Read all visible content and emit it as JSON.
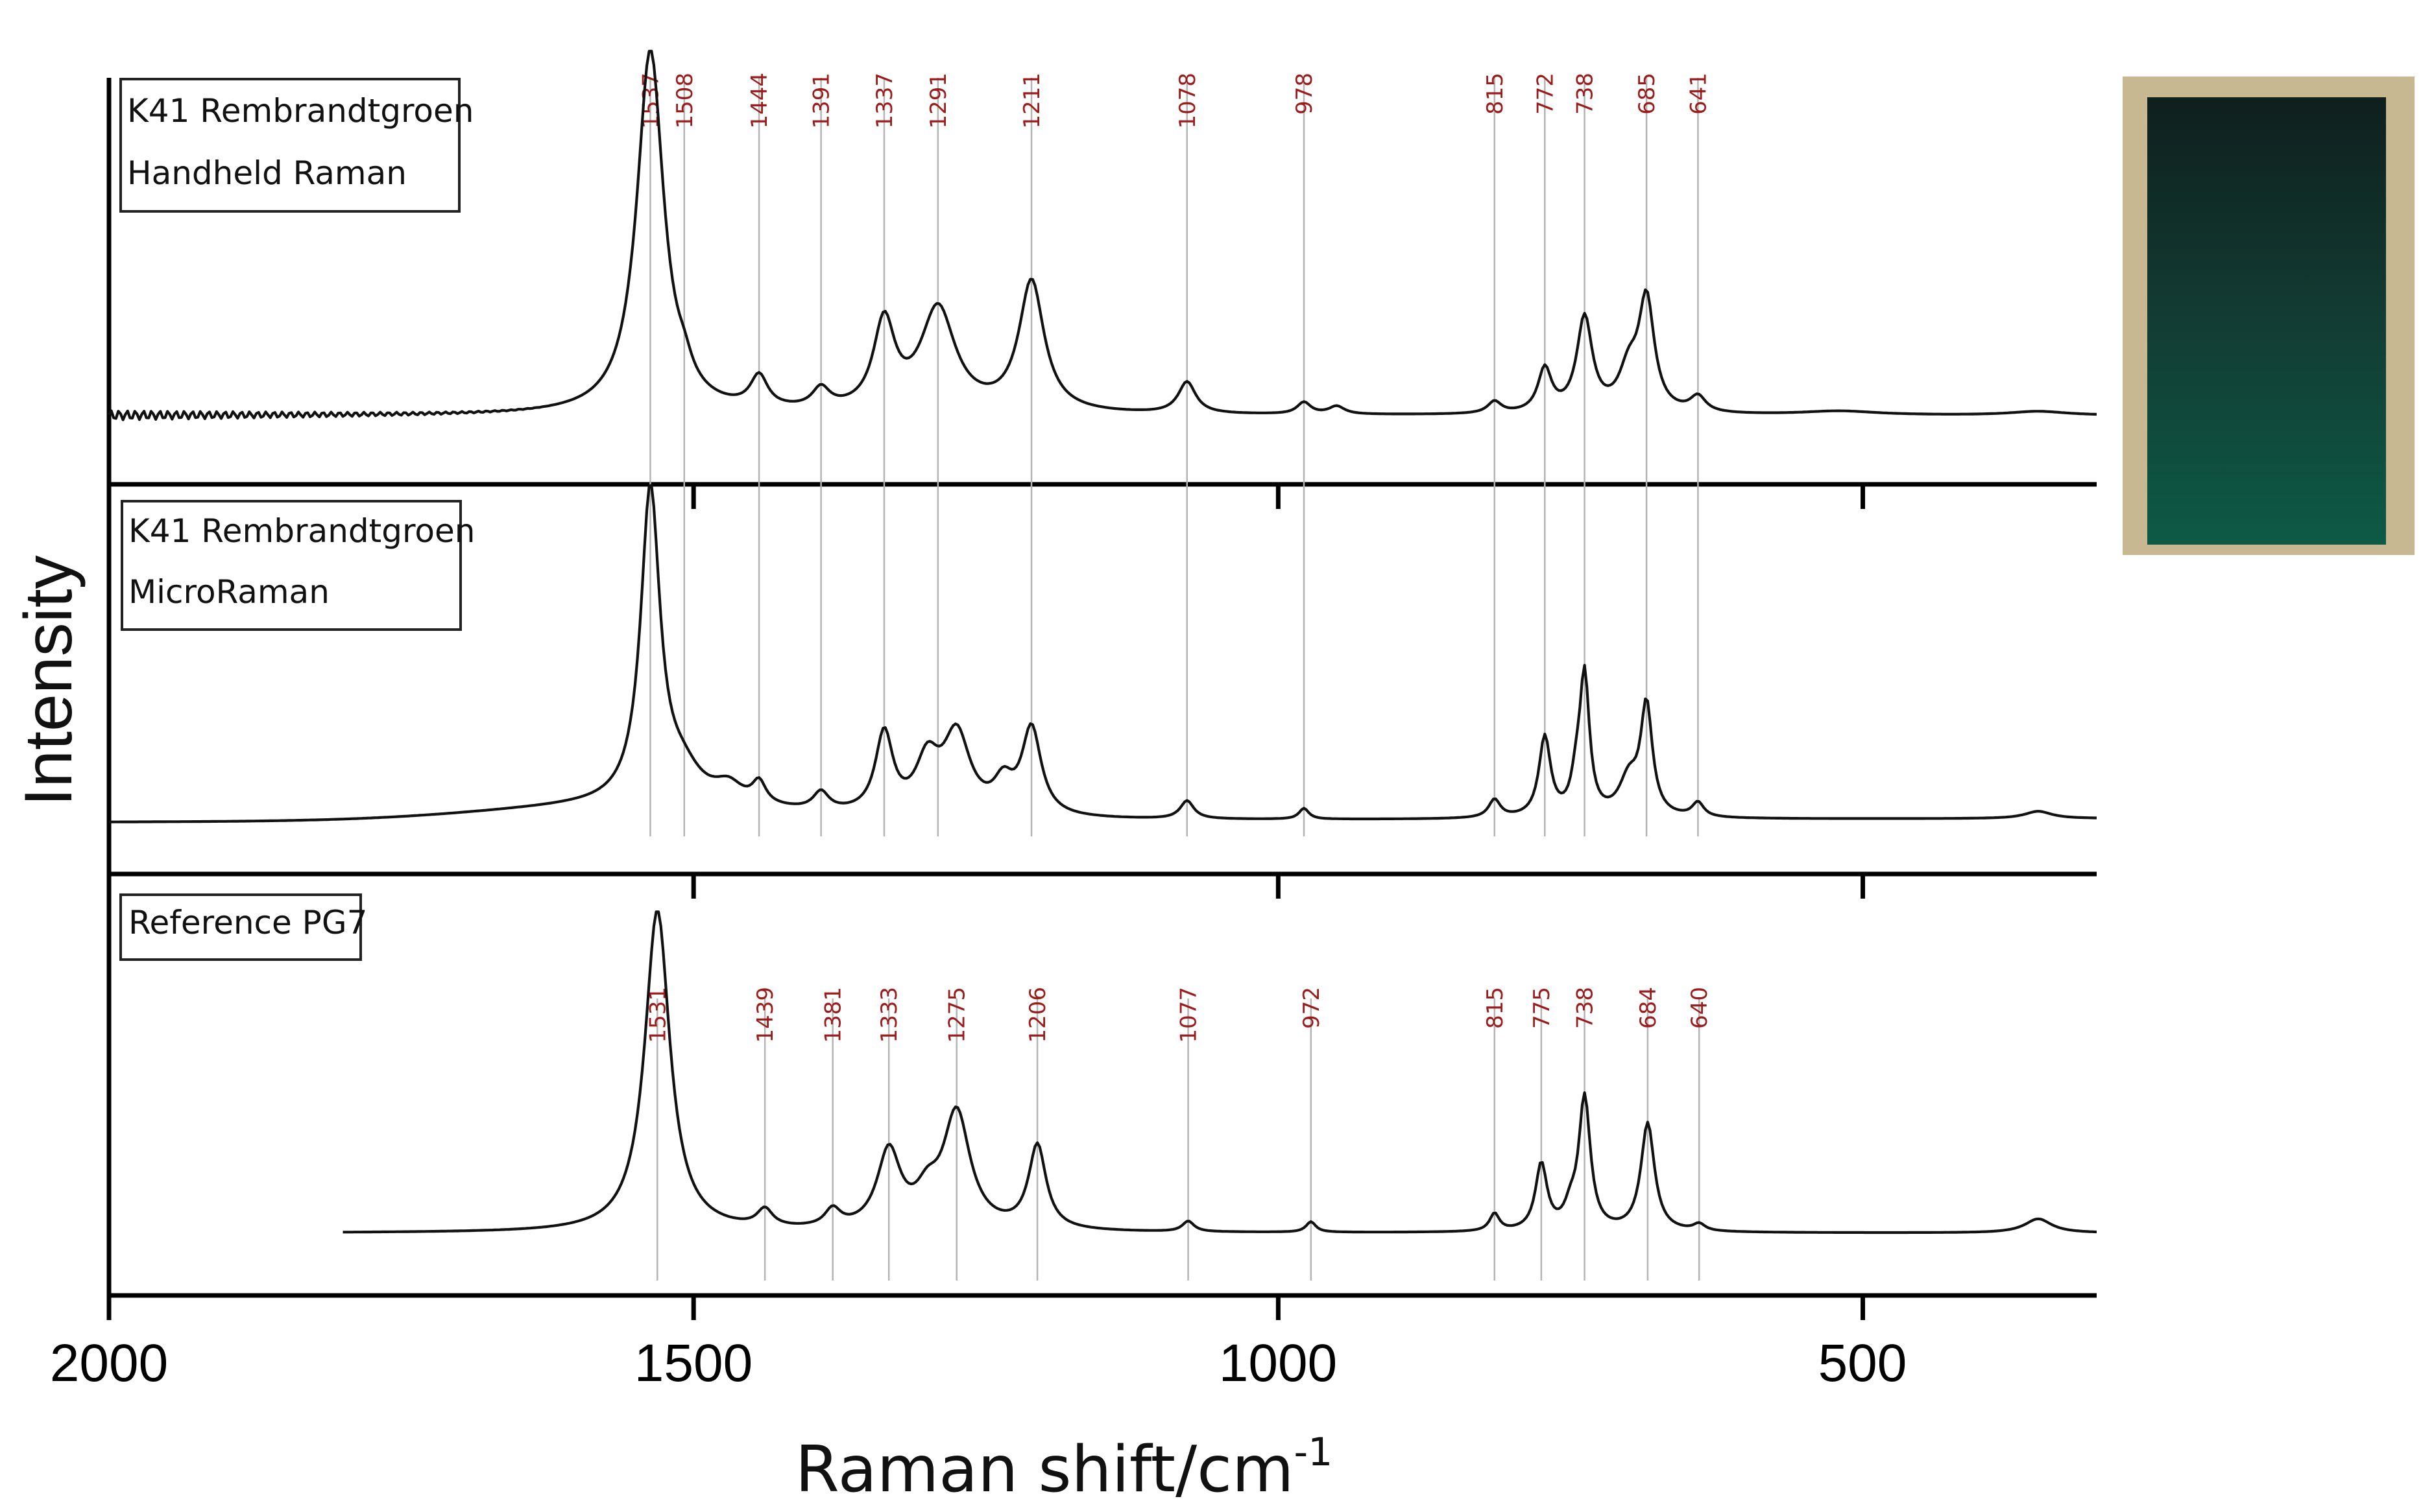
{
  "chart_data": {
    "type": "line",
    "xlabel_main": "Raman shift/cm",
    "xlabel_sup": "-1",
    "ylabel": "Intensity",
    "xlim": [
      2000,
      300
    ],
    "xticks": [
      2000,
      1500,
      1000,
      500
    ],
    "panels": [
      {
        "label_lines": [
          "K41 Rembrandtgroen",
          "Handheld Raman"
        ],
        "peaks": [
          1537,
          1508,
          1444,
          1391,
          1337,
          1291,
          1211,
          1078,
          978,
          815,
          772,
          738,
          685,
          641
        ],
        "peak_labels": [
          "1537",
          "1508",
          "1444",
          "1391",
          "1337",
          "1291",
          "1211",
          "1078",
          "978",
          "815",
          "772",
          "738",
          "685",
          "641"
        ],
        "x_start": 2000,
        "x_end": 300,
        "baseline": 0.08,
        "noise_below": 1620,
        "bumps": [
          [
            1537,
            0.92,
            14
          ],
          [
            1508,
            0.04,
            8
          ],
          [
            1444,
            0.08,
            9
          ],
          [
            1391,
            0.05,
            9
          ],
          [
            1337,
            0.22,
            11
          ],
          [
            1291,
            0.26,
            18
          ],
          [
            1211,
            0.33,
            13
          ],
          [
            1078,
            0.08,
            9
          ],
          [
            978,
            0.03,
            7
          ],
          [
            950,
            0.02,
            8
          ],
          [
            815,
            0.03,
            7
          ],
          [
            772,
            0.11,
            7
          ],
          [
            738,
            0.24,
            8
          ],
          [
            700,
            0.1,
            10
          ],
          [
            685,
            0.28,
            8
          ],
          [
            641,
            0.04,
            8
          ],
          [
            520,
            0.01,
            40
          ],
          [
            350,
            0.01,
            30
          ]
        ]
      },
      {
        "label_lines": [
          "K41 Rembrandtgroen",
          "MicroRaman"
        ],
        "peaks": [],
        "peak_labels": [],
        "x_start": 2000,
        "x_end": 300,
        "baseline": 0.03,
        "noise_below": 0,
        "bumps": [
          [
            1537,
            0.86,
            10
          ],
          [
            1510,
            0.08,
            20
          ],
          [
            1470,
            0.05,
            15
          ],
          [
            1444,
            0.06,
            7
          ],
          [
            1391,
            0.05,
            8
          ],
          [
            1337,
            0.22,
            9
          ],
          [
            1300,
            0.14,
            12
          ],
          [
            1275,
            0.22,
            14
          ],
          [
            1211,
            0.24,
            10
          ],
          [
            1235,
            0.08,
            10
          ],
          [
            1078,
            0.05,
            7
          ],
          [
            978,
            0.03,
            5
          ],
          [
            815,
            0.05,
            6
          ],
          [
            772,
            0.22,
            6
          ],
          [
            745,
            0.08,
            5
          ],
          [
            738,
            0.38,
            5
          ],
          [
            700,
            0.1,
            10
          ],
          [
            685,
            0.3,
            6
          ],
          [
            641,
            0.04,
            6
          ],
          [
            350,
            0.02,
            14
          ]
        ]
      },
      {
        "label_lines": [
          "Reference PG7"
        ],
        "peaks": [
          1531,
          1439,
          1381,
          1333,
          1275,
          1206,
          1077,
          972,
          815,
          775,
          738,
          684,
          640
        ],
        "peak_labels": [
          "1531",
          "1439",
          "1381",
          "1333",
          "1275",
          "1206",
          "1077",
          "972",
          "815",
          "775",
          "738",
          "684",
          "640"
        ],
        "x_start": 1800,
        "x_end": 300,
        "baseline": 0.08,
        "noise_below": 0,
        "bumps": [
          [
            1531,
            0.92,
            13
          ],
          [
            1439,
            0.05,
            8
          ],
          [
            1381,
            0.05,
            8
          ],
          [
            1333,
            0.22,
            12
          ],
          [
            1300,
            0.08,
            12
          ],
          [
            1275,
            0.33,
            14
          ],
          [
            1206,
            0.24,
            9
          ],
          [
            1077,
            0.03,
            6
          ],
          [
            972,
            0.03,
            5
          ],
          [
            815,
            0.05,
            5
          ],
          [
            775,
            0.19,
            6
          ],
          [
            750,
            0.05,
            6
          ],
          [
            738,
            0.38,
            6
          ],
          [
            684,
            0.31,
            7
          ],
          [
            640,
            0.02,
            6
          ],
          [
            350,
            0.04,
            14
          ]
        ]
      }
    ]
  },
  "inset_image": {
    "name": "green paint sample swatch",
    "colors": [
      "#0f1f1c",
      "#123c34",
      "#0d5a46"
    ],
    "border_color": "#c8b892"
  }
}
